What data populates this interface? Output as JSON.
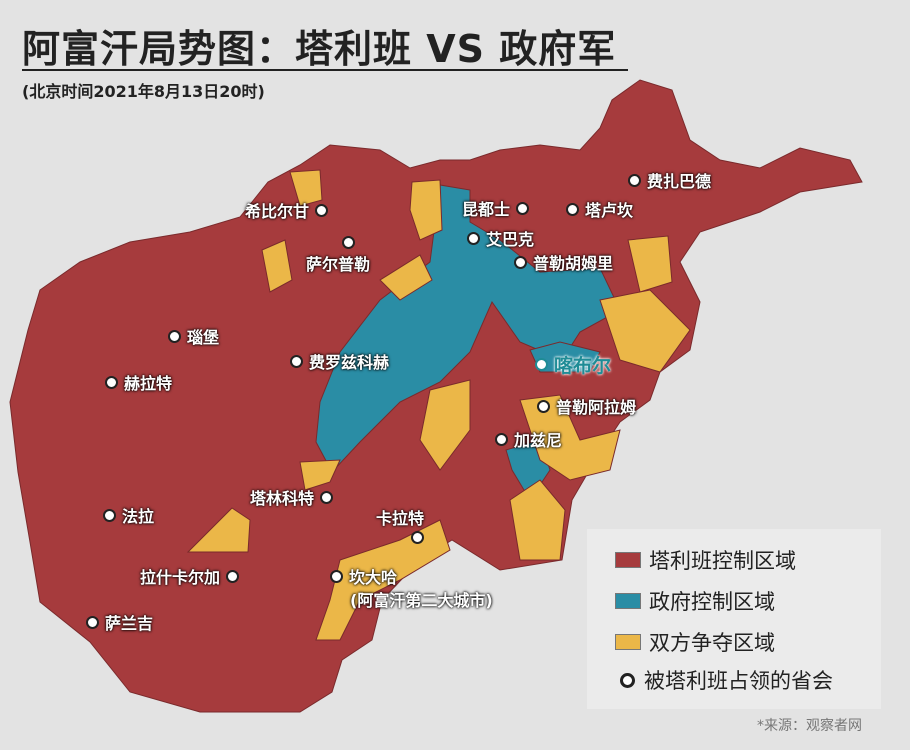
{
  "title": "阿富汗局势图：塔利班 VS 政府军",
  "subtitle": "(北京时间2021年8月13日20时)",
  "colors": {
    "taliban": "#a63b3d",
    "government": "#2a8da5",
    "contested": "#ebb748",
    "background": "#e3e3e3"
  },
  "cities": [
    {
      "name": "希比尔甘",
      "key": "sheberghan"
    },
    {
      "name": "萨尔普勒",
      "key": "sar-e-pol"
    },
    {
      "name": "昆都士",
      "key": "kunduz"
    },
    {
      "name": "塔卢坎",
      "key": "taloqan"
    },
    {
      "name": "费扎巴德",
      "key": "faizabad"
    },
    {
      "name": "艾巴克",
      "key": "aybak"
    },
    {
      "name": "普勒胡姆里",
      "key": "pul-e-khumri"
    },
    {
      "name": "瑙堡",
      "key": "qala-i-naw"
    },
    {
      "name": "费罗兹科赫",
      "key": "firozkoh"
    },
    {
      "name": "赫拉特",
      "key": "herat"
    },
    {
      "name": "喀布尔",
      "key": "kabul"
    },
    {
      "name": "普勒阿拉姆",
      "key": "pul-e-alam"
    },
    {
      "name": "加兹尼",
      "key": "ghazni"
    },
    {
      "name": "塔林科特",
      "key": "tarinkot"
    },
    {
      "name": "卡拉特",
      "key": "qalat"
    },
    {
      "name": "法拉",
      "key": "farah"
    },
    {
      "name": "拉什卡尔加",
      "key": "lashkar-gah"
    },
    {
      "name": "坎大哈",
      "key": "kandahar"
    },
    {
      "name": "萨兰吉",
      "key": "zaranj"
    }
  ],
  "kandahar_note": "(阿富汗第二大城市)",
  "legend": {
    "taliban": "塔利班控制区域",
    "government": "政府控制区域",
    "contested": "双方争夺区域",
    "captured": "被塔利班占领的省会"
  },
  "source": "*来源：观察者网"
}
